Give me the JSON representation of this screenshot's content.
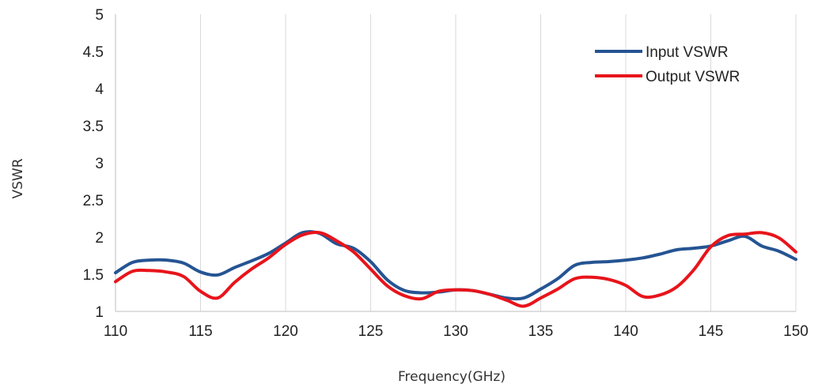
{
  "chart_data": {
    "type": "line",
    "title": "",
    "xlabel": "Frequency(GHz)",
    "ylabel": "VSWR",
    "xlim": [
      110,
      150
    ],
    "ylim": [
      1,
      5
    ],
    "x_ticks": [
      "110",
      "115",
      "120",
      "125",
      "130",
      "135",
      "140",
      "145",
      "150"
    ],
    "y_ticks": [
      "1",
      "1.5",
      "2",
      "2.5",
      "3",
      "3.5",
      "4",
      "4.5",
      "5"
    ],
    "grid": "vertical",
    "legend_position": "top-right",
    "series": [
      {
        "name": "Input VSWR",
        "color": "#255493",
        "x": [
          110,
          111,
          112,
          113,
          114,
          115,
          116,
          117,
          118,
          119,
          120,
          121,
          122,
          123,
          124,
          125,
          126,
          127,
          128,
          129,
          130,
          131,
          132,
          133,
          134,
          135,
          136,
          137,
          138,
          139,
          140,
          141,
          142,
          143,
          144,
          145,
          146,
          147,
          148,
          149,
          150
        ],
        "values": [
          1.52,
          1.66,
          1.69,
          1.69,
          1.65,
          1.53,
          1.49,
          1.59,
          1.68,
          1.78,
          1.92,
          2.06,
          2.05,
          1.91,
          1.85,
          1.67,
          1.42,
          1.28,
          1.25,
          1.26,
          1.29,
          1.28,
          1.23,
          1.18,
          1.18,
          1.3,
          1.44,
          1.62,
          1.66,
          1.67,
          1.69,
          1.72,
          1.77,
          1.83,
          1.85,
          1.88,
          1.95,
          2.01,
          1.88,
          1.81,
          1.7
        ]
      },
      {
        "name": "Output VSWR",
        "color": "#e8141b",
        "x": [
          110,
          111,
          112,
          113,
          114,
          115,
          116,
          117,
          118,
          119,
          120,
          121,
          122,
          123,
          124,
          125,
          126,
          127,
          128,
          129,
          130,
          131,
          132,
          133,
          134,
          135,
          136,
          137,
          138,
          139,
          140,
          141,
          142,
          143,
          144,
          145,
          146,
          147,
          148,
          149,
          150
        ],
        "values": [
          1.4,
          1.54,
          1.55,
          1.53,
          1.47,
          1.27,
          1.18,
          1.39,
          1.57,
          1.72,
          1.9,
          2.03,
          2.06,
          1.95,
          1.8,
          1.57,
          1.34,
          1.21,
          1.17,
          1.27,
          1.29,
          1.28,
          1.23,
          1.15,
          1.07,
          1.18,
          1.3,
          1.44,
          1.46,
          1.43,
          1.35,
          1.2,
          1.22,
          1.33,
          1.56,
          1.87,
          2.02,
          2.04,
          2.06,
          1.99,
          1.8
        ]
      }
    ]
  }
}
